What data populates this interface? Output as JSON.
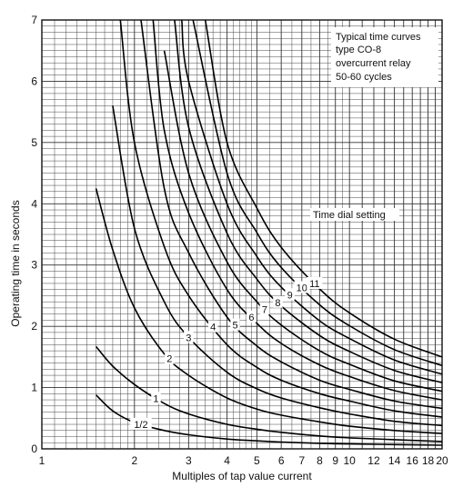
{
  "chart_data": {
    "type": "line",
    "title": "",
    "xlabel": "Multiples of tap value current",
    "ylabel": "Operating time in seconds",
    "xscale": "log",
    "xlim": [
      1,
      20
    ],
    "ylim": [
      0,
      7
    ],
    "grid": true,
    "x_tick_labels": [
      "1",
      "2",
      "3",
      "4",
      "5",
      "6",
      "7",
      "8",
      "9",
      "10",
      "12",
      "14",
      "16",
      "18",
      "20"
    ],
    "y_tick_labels": [
      "0",
      "1",
      "2",
      "3",
      "4",
      "5",
      "6",
      "7"
    ],
    "annotation_lines": [
      "Typical time curves",
      "type CO-8",
      "overcurrent relay",
      "50-60 cycles"
    ],
    "dial_label": "Time dial setting",
    "series": [
      {
        "name": "1/2",
        "x": [
          1.5,
          1.7,
          2,
          2.5,
          3,
          4,
          5,
          6,
          8,
          10,
          14,
          20
        ],
        "y": [
          0.88,
          0.62,
          0.43,
          0.3,
          0.23,
          0.16,
          0.13,
          0.11,
          0.09,
          0.08,
          0.07,
          0.06
        ]
      },
      {
        "name": "1",
        "x": [
          1.5,
          1.7,
          2,
          2.5,
          3,
          4,
          5,
          6,
          8,
          10,
          14,
          20
        ],
        "y": [
          1.67,
          1.35,
          1.05,
          0.74,
          0.57,
          0.4,
          0.32,
          0.27,
          0.21,
          0.18,
          0.15,
          0.12
        ]
      },
      {
        "name": "2",
        "x": [
          1.5,
          1.7,
          2,
          2.5,
          3,
          4,
          5,
          6,
          8,
          10,
          14,
          20
        ],
        "y": [
          4.25,
          3.25,
          2.3,
          1.55,
          1.2,
          0.83,
          0.65,
          0.55,
          0.44,
          0.37,
          0.3,
          0.25
        ]
      },
      {
        "name": "3",
        "x": [
          1.7,
          2,
          2.5,
          3,
          4,
          5,
          6,
          8,
          10,
          14,
          20
        ],
        "y": [
          5.6,
          3.6,
          2.4,
          1.82,
          1.25,
          0.98,
          0.83,
          0.67,
          0.57,
          0.45,
          0.38
        ]
      },
      {
        "name": "4",
        "x": [
          1.8,
          2,
          2.5,
          3,
          4,
          5,
          6,
          8,
          10,
          14,
          20
        ],
        "y": [
          7.0,
          5.0,
          3.3,
          2.5,
          1.7,
          1.33,
          1.12,
          0.9,
          0.78,
          0.62,
          0.52
        ]
      },
      {
        "name": "5",
        "x": [
          2.1,
          2.5,
          3,
          4,
          5,
          6,
          8,
          10,
          14,
          20
        ],
        "y": [
          7.0,
          4.25,
          3.2,
          2.15,
          1.68,
          1.42,
          1.12,
          0.97,
          0.78,
          0.66
        ]
      },
      {
        "name": "6",
        "x": [
          2.3,
          2.5,
          3,
          4,
          5,
          6,
          8,
          10,
          14,
          20
        ],
        "y": [
          7.0,
          5.2,
          3.85,
          2.6,
          2.05,
          1.72,
          1.37,
          1.18,
          0.95,
          0.8
        ]
      },
      {
        "name": "7",
        "x": [
          2.5,
          3,
          4,
          5,
          6,
          8,
          10,
          14,
          20
        ],
        "y": [
          6.5,
          4.5,
          3.05,
          2.4,
          2.02,
          1.6,
          1.38,
          1.11,
          0.94
        ]
      },
      {
        "name": "8",
        "x": [
          2.7,
          3,
          4,
          5,
          6,
          8,
          10,
          14,
          20
        ],
        "y": [
          7.0,
          5.25,
          3.52,
          2.77,
          2.33,
          1.85,
          1.59,
          1.28,
          1.08
        ]
      },
      {
        "name": "9",
        "x": [
          2.85,
          3,
          4,
          5,
          6,
          8,
          10,
          14,
          20
        ],
        "y": [
          7.0,
          6.0,
          4.0,
          3.14,
          2.64,
          2.09,
          1.8,
          1.45,
          1.22
        ]
      },
      {
        "name": "10",
        "x": [
          3.1,
          4,
          5,
          6,
          8,
          10,
          14,
          20
        ],
        "y": [
          7.0,
          4.5,
          3.53,
          2.96,
          2.35,
          2.01,
          1.62,
          1.36
        ]
      },
      {
        "name": "11",
        "x": [
          3.4,
          4,
          5,
          6,
          8,
          10,
          14,
          20
        ],
        "y": [
          7.0,
          5.0,
          3.93,
          3.29,
          2.61,
          2.22,
          1.79,
          1.5
        ]
      }
    ]
  }
}
